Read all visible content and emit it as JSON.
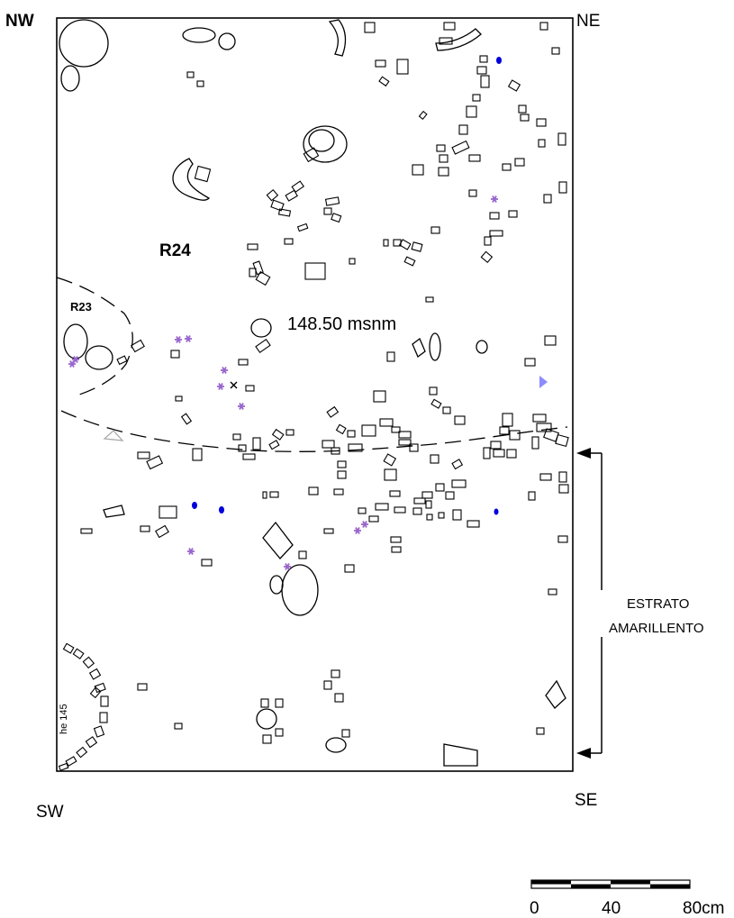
{
  "corners": {
    "nw": "NW",
    "ne": "NE",
    "sw": "SW",
    "se": "SE"
  },
  "room_labels": {
    "main": "R24",
    "secondary": "R23"
  },
  "elevation": "148.50 msnm",
  "stratum": {
    "line1": "ESTRATO",
    "line2": "AMARILLENTO"
  },
  "side_code": "he 145",
  "scale_bar": {
    "tick_0": "0",
    "tick_1": "40",
    "tick_2": "80cm"
  },
  "colors": {
    "ink": "#000000",
    "purple_marker": "#9966cc",
    "blue_marker": "#0000dd",
    "triangle_marker": "#8c8cff",
    "gray_outline": "#aaaaaa"
  },
  "icons": {
    "asterisk": "asterisk-marker-icon",
    "dot": "blue-dot-icon",
    "triangle": "triangle-marker-icon",
    "cross": "cross-marker-icon"
  }
}
